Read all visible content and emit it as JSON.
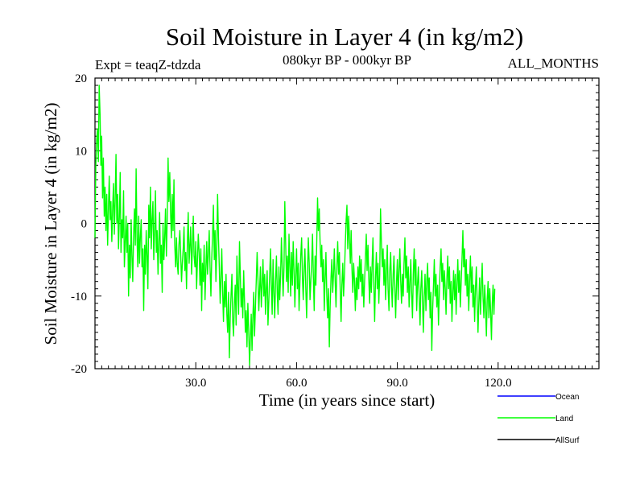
{
  "chart_data": {
    "type": "line",
    "title": "Soil Moisture in Layer 4 (in kg/m2)",
    "subtitle_left": "Expt = teaqZ-tdzda",
    "subtitle_center": "080kyr BP - 000kyr BP",
    "subtitle_right": "ALL_MONTHS",
    "xlabel": "Time (in years since start)",
    "ylabel": "Soil Moisture in Layer 4 (in kg/m2)",
    "xlim": [
      0,
      150
    ],
    "ylim": [
      -20,
      20
    ],
    "x_ticks": [
      30,
      60,
      90,
      120
    ],
    "x_tick_labels": [
      "30.0",
      "60.0",
      "90.0",
      "120.0"
    ],
    "y_ticks": [
      -20,
      -10,
      0,
      10,
      20
    ],
    "y_tick_labels": [
      "-20",
      "-10",
      "0",
      "10",
      "20"
    ],
    "reference_line": {
      "y": 0,
      "style": "dashed"
    },
    "legend": [
      {
        "name": "Ocean",
        "color": "#0000ff"
      },
      {
        "name": "Land",
        "color": "#00ff00"
      },
      {
        "name": "AllSurf",
        "color": "#000000"
      }
    ],
    "series": [
      {
        "name": "Land",
        "color": "#00ff00",
        "x_start": 0,
        "x_step": 0.25,
        "values": [
          -2.0,
          8.0,
          11.5,
          13.0,
          8.5,
          19.0,
          15.0,
          8.0,
          12.0,
          3.5,
          9.0,
          1.0,
          5.0,
          -1.0,
          4.0,
          -3.0,
          2.0,
          6.5,
          0.5,
          3.0,
          -2.5,
          2.0,
          5.5,
          -1.5,
          3.0,
          9.5,
          0.0,
          4.0,
          -3.5,
          1.0,
          7.0,
          -4.0,
          0.5,
          -2.0,
          4.5,
          -6.0,
          -2.5,
          1.0,
          -4.0,
          0.0,
          -10.0,
          -3.0,
          -7.5,
          0.5,
          -4.5,
          -8.0,
          -1.5,
          2.0,
          -3.0,
          7.5,
          -2.0,
          -6.0,
          1.0,
          -5.5,
          -2.0,
          0.5,
          -6.0,
          -3.5,
          -12.0,
          -3.0,
          -7.0,
          -1.0,
          -4.5,
          -9.0,
          2.5,
          -2.0,
          5.0,
          -3.5,
          0.5,
          3.0,
          -5.0,
          -1.0,
          4.5,
          -4.0,
          -1.0,
          -7.0,
          -2.5,
          1.5,
          -5.5,
          -3.0,
          -9.5,
          0.0,
          -5.0,
          -2.0,
          2.0,
          -4.5,
          0.5,
          9.0,
          3.0,
          7.0,
          1.5,
          -2.0,
          4.0,
          -1.0,
          6.0,
          -3.0,
          -6.0,
          -2.0,
          -5.5,
          -7.0,
          -3.0,
          -1.0,
          -4.0,
          -8.0,
          -5.5,
          -3.5,
          -0.5,
          -6.5,
          -4.0,
          -9.0,
          -2.5,
          1.5,
          -5.5,
          -3.0,
          -0.5,
          -7.0,
          -3.5,
          1.0,
          -4.5,
          -6.0,
          -2.5,
          -9.0,
          -5.0,
          -1.5,
          -4.0,
          -8.5,
          -3.5,
          -12.0,
          -5.5,
          -8.0,
          -3.0,
          -10.5,
          -6.5,
          -2.5,
          -7.0,
          -4.0,
          -1.0,
          -6.0,
          -10.0,
          -5.0,
          -1.5,
          2.5,
          -5.0,
          -1.0,
          -8.0,
          -3.5,
          4.0,
          -2.0,
          -6.0,
          -11.0,
          -7.5,
          -3.5,
          -9.5,
          -13.5,
          -8.0,
          -11.5,
          -7.0,
          -12.5,
          -15.0,
          -9.5,
          -18.5,
          -13.0,
          -10.0,
          -7.0,
          -13.5,
          -15.5,
          -11.0,
          -8.5,
          -14.0,
          -4.5,
          -9.0,
          -12.5,
          -2.5,
          -7.0,
          -11.5,
          -9.0,
          -13.0,
          -6.5,
          -10.5,
          -15.0,
          -12.0,
          -17.0,
          -11.0,
          -14.5,
          -19.5,
          -16.0,
          -12.5,
          -17.5,
          -13.0,
          -9.5,
          -15.5,
          -11.5,
          -8.0,
          -4.0,
          -7.5,
          -12.0,
          -9.0,
          -6.0,
          -11.5,
          -8.5,
          -5.0,
          -10.0,
          -7.0,
          -12.5,
          -9.0,
          -6.5,
          -14.0,
          -10.5,
          -7.0,
          -3.5,
          -8.5,
          -12.5,
          -5.0,
          -9.5,
          -13.0,
          -8.0,
          -4.5,
          -9.5,
          -12.5,
          -6.0,
          -10.5,
          -7.0,
          -2.0,
          -6.5,
          -10.0,
          -6.0,
          3.0,
          -2.5,
          -8.0,
          -4.5,
          -9.5,
          -1.5,
          -6.0,
          -10.0,
          -4.0,
          -8.5,
          -2.5,
          -6.5,
          -11.5,
          -7.0,
          -3.5,
          -9.0,
          -5.5,
          -12.0,
          -8.0,
          -4.5,
          -2.0,
          -7.5,
          -10.5,
          -6.0,
          -3.5,
          -9.0,
          -13.0,
          -7.0,
          -2.0,
          -5.5,
          -10.5,
          -8.0,
          -5.5,
          -1.5,
          -7.5,
          -12.0,
          -4.5,
          -8.5,
          -3.0,
          3.5,
          -1.0,
          2.0,
          -2.5,
          -6.0,
          -3.0,
          -8.0,
          -5.0,
          -12.0,
          -7.5,
          -4.0,
          -10.0,
          -13.0,
          -9.0,
          -17.0,
          -11.5,
          -7.5,
          -5.0,
          -9.5,
          -7.0,
          -3.5,
          -8.0,
          -11.5,
          -6.0,
          -2.5,
          -7.0,
          -4.0,
          -9.5,
          -13.5,
          -8.5,
          -5.5,
          -10.0,
          -7.0,
          -3.0,
          0.5,
          2.5,
          -3.5,
          1.0,
          -2.0,
          -5.5,
          -1.0,
          -6.5,
          -9.5,
          -5.5,
          -8.0,
          -12.0,
          -7.5,
          -10.5,
          -6.0,
          -9.0,
          -4.5,
          -8.0,
          -5.0,
          -10.0,
          -7.0,
          -11.5,
          -8.0,
          -4.5,
          -1.5,
          -6.5,
          -3.0,
          -7.5,
          -11.0,
          -6.0,
          -9.5,
          -5.5,
          -2.0,
          -8.5,
          -13.5,
          -7.5,
          -4.0,
          -9.0,
          -5.5,
          -11.0,
          -7.0,
          2.0,
          -2.5,
          -6.0,
          -3.5,
          -8.5,
          -5.0,
          -10.5,
          -7.0,
          -3.0,
          -9.0,
          -12.0,
          -6.5,
          -4.0,
          -8.5,
          -11.5,
          -7.0,
          -4.5,
          -9.0,
          -13.0,
          -8.0,
          -5.0,
          -10.5,
          -6.5,
          -3.5,
          -8.0,
          -11.0,
          -7.0,
          -10.0,
          -5.5,
          -2.0,
          -7.5,
          -4.5,
          -9.5,
          -6.0,
          -11.5,
          -8.0,
          -5.0,
          -9.5,
          -13.0,
          -7.0,
          -3.5,
          -8.5,
          -5.0,
          -12.0,
          -8.5,
          -6.0,
          -10.0,
          -14.0,
          -9.0,
          -6.5,
          -11.0,
          -15.0,
          -10.0,
          -7.0,
          -12.0,
          -8.0,
          -5.5,
          -10.5,
          -7.5,
          -13.0,
          -9.5,
          -17.5,
          -12.0,
          -8.5,
          -5.0,
          -10.0,
          -7.0,
          -11.5,
          -8.5,
          -14.0,
          -9.5,
          -6.0,
          -3.5,
          -8.0,
          -5.5,
          -10.5,
          -6.5,
          -9.0,
          -12.5,
          -7.5,
          -4.5,
          -9.0,
          -6.0,
          -11.0,
          -8.0,
          -13.5,
          -9.5,
          -6.5,
          -10.5,
          -7.0,
          -12.5,
          -8.5,
          -5.0,
          -9.5,
          -6.5,
          -11.5,
          -8.0,
          -5.0,
          -1.0,
          -6.0,
          -3.5,
          -8.5,
          -5.0,
          -10.0,
          -7.0,
          -12.0,
          -8.0,
          -4.5,
          -9.5,
          -6.0,
          -11.5,
          -8.5,
          -13.5,
          -9.0,
          -6.0,
          -10.5,
          -15.0,
          -11.0,
          -7.5,
          -12.5,
          -9.0,
          -5.5,
          -10.0,
          -13.0,
          -8.5,
          -11.5,
          -15.5,
          -10.5,
          -8.0,
          -13.0,
          -9.0,
          -12.0,
          -16.0,
          -11.0,
          -8.5,
          -12.5,
          -9.0
        ]
      }
    ]
  }
}
